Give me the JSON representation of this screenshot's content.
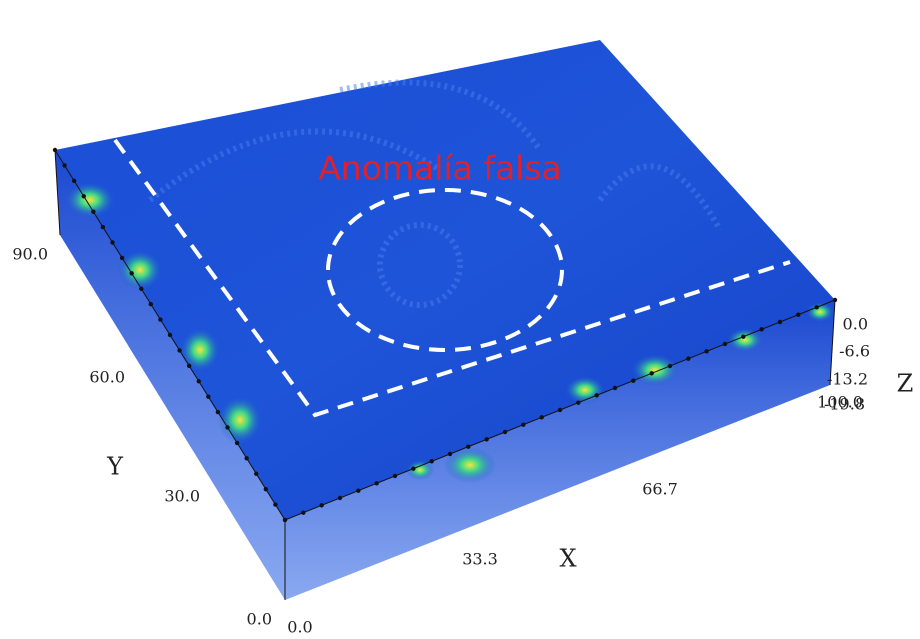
{
  "annotation": "Anomalía falsa",
  "axes": {
    "x": {
      "label": "X",
      "ticks": [
        "0.0",
        "33.3",
        "66.7",
        "100.0"
      ]
    },
    "y": {
      "label": "Y",
      "ticks": [
        "0.0",
        "30.0",
        "60.0",
        "90.0"
      ]
    },
    "z": {
      "label": "Z",
      "ticks": [
        "0.0",
        "-6.6",
        "-13.2",
        "-19.8"
      ]
    }
  }
}
